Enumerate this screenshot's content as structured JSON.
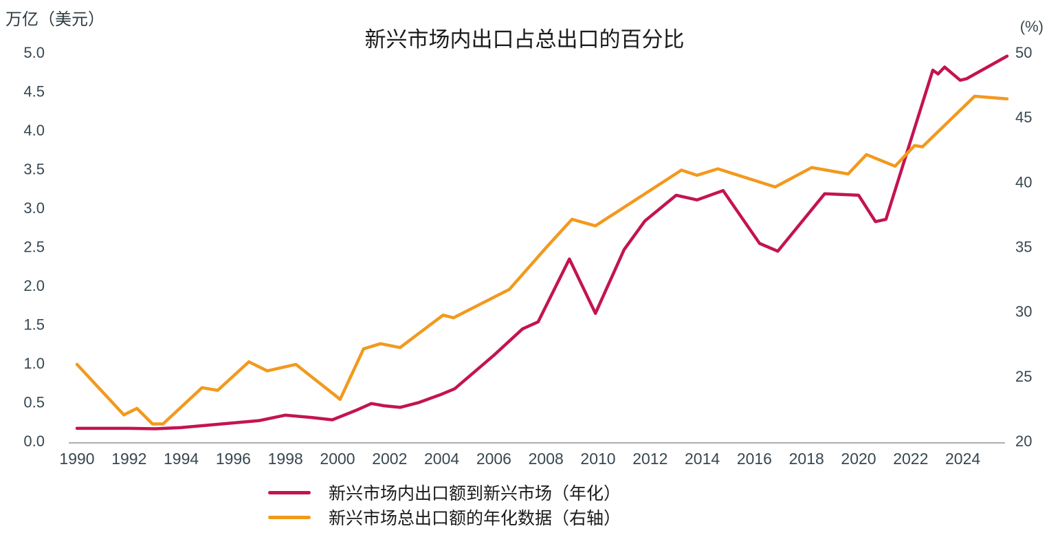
{
  "header": {
    "left_axis_title": "万亿（美元）",
    "chart_title": "新兴市场内出口占总出口的百分比",
    "right_axis_title": "(%)"
  },
  "legend": {
    "items": [
      {
        "label": "新兴市场内出口额到新兴市场（年化）",
        "color": "#c31450"
      },
      {
        "label": "新兴市场总出口额的年化数据（右轴）",
        "color": "#f2991e"
      }
    ]
  },
  "colors": {
    "red_line": "#c31450",
    "orange_line": "#f2991e",
    "tick_label": "#37474f",
    "axis_line": "#a9afb4",
    "title_text": "#1b1b1b"
  },
  "chart_data": {
    "type": "line",
    "title": "新兴市场内出口占总出口的百分比",
    "left_axis": {
      "title": "万亿（美元）",
      "unit": "trillion USD",
      "ticks": [
        "5.0",
        "4.5",
        "4.0",
        "3.5",
        "3.0",
        "2.5",
        "2.0",
        "1.5",
        "1.0",
        "0.5",
        "0.0"
      ],
      "tick_values": [
        5.0,
        4.5,
        4.0,
        3.5,
        3.0,
        2.5,
        2.0,
        1.5,
        1.0,
        0.5,
        0.0
      ],
      "range": [
        0,
        5
      ]
    },
    "right_axis": {
      "title": "(%)",
      "unit": "percent",
      "ticks": [
        "50",
        "45",
        "40",
        "35",
        "30",
        "25",
        "20"
      ],
      "tick_values": [
        50,
        45,
        40,
        35,
        30,
        25,
        20
      ],
      "range": [
        20,
        50
      ]
    },
    "x_axis": {
      "ticks": [
        "1990",
        "1992",
        "1994",
        "1996",
        "1998",
        "2000",
        "2002",
        "2004",
        "2006",
        "2008",
        "2010",
        "2012",
        "2014",
        "2016",
        "2018",
        "2020",
        "2022",
        "2024"
      ],
      "tick_values": [
        1990,
        1992,
        1994,
        1996,
        1998,
        2000,
        2002,
        2004,
        2006,
        2008,
        2010,
        2012,
        2014,
        2016,
        2018,
        2020,
        2022,
        2024
      ],
      "range": [
        1990,
        2025.7
      ]
    },
    "grid": false,
    "legend_position": "bottom",
    "series": [
      {
        "name": "新兴市场内出口额到新兴市场（年化）",
        "axis": "left",
        "color": "#c31450",
        "points": [
          [
            1990,
            0.16
          ],
          [
            1991,
            0.16
          ],
          [
            1992,
            0.16
          ],
          [
            1993,
            0.155
          ],
          [
            1994,
            0.17
          ],
          [
            1995,
            0.2
          ],
          [
            1996,
            0.23
          ],
          [
            1997,
            0.26
          ],
          [
            1998,
            0.33
          ],
          [
            1999,
            0.3
          ],
          [
            1999.8,
            0.27
          ],
          [
            2000.7,
            0.39
          ],
          [
            2001.3,
            0.48
          ],
          [
            2001.8,
            0.45
          ],
          [
            2002.4,
            0.43
          ],
          [
            2003.1,
            0.49
          ],
          [
            2004,
            0.6
          ],
          [
            2004.5,
            0.67
          ],
          [
            2006,
            1.1
          ],
          [
            2007.1,
            1.44
          ],
          [
            2007.7,
            1.53
          ],
          [
            2008.9,
            2.34
          ],
          [
            2009.9,
            1.64
          ],
          [
            2011,
            2.46
          ],
          [
            2011.8,
            2.83
          ],
          [
            2013,
            3.16
          ],
          [
            2013.8,
            3.1
          ],
          [
            2014.8,
            3.22
          ],
          [
            2016.2,
            2.54
          ],
          [
            2016.9,
            2.44
          ],
          [
            2018.7,
            3.18
          ],
          [
            2020,
            3.16
          ],
          [
            2020.65,
            2.82
          ],
          [
            2021.05,
            2.85
          ],
          [
            2022.85,
            4.77
          ],
          [
            2023.05,
            4.72
          ],
          [
            2023.3,
            4.81
          ],
          [
            2023.9,
            4.64
          ],
          [
            2024.15,
            4.66
          ],
          [
            2025.7,
            4.95
          ]
        ]
      },
      {
        "name": "新兴市场总出口额的年化数据（右轴）",
        "axis": "right",
        "color": "#f2991e",
        "points": [
          [
            1990,
            25.9
          ],
          [
            1991.8,
            22.0
          ],
          [
            1992.3,
            22.5
          ],
          [
            1992.9,
            21.3
          ],
          [
            1993.3,
            21.3
          ],
          [
            1994.8,
            24.1
          ],
          [
            1995.4,
            23.9
          ],
          [
            1996.6,
            26.1
          ],
          [
            1997.3,
            25.4
          ],
          [
            1998.4,
            25.9
          ],
          [
            2000.1,
            23.2
          ],
          [
            2001,
            27.1
          ],
          [
            2001.65,
            27.5
          ],
          [
            2002.4,
            27.2
          ],
          [
            2004.05,
            29.7
          ],
          [
            2004.45,
            29.5
          ],
          [
            2006.6,
            31.7
          ],
          [
            2008,
            34.9
          ],
          [
            2009,
            37.1
          ],
          [
            2009.9,
            36.6
          ],
          [
            2013.2,
            40.9
          ],
          [
            2013.8,
            40.5
          ],
          [
            2014.6,
            41.0
          ],
          [
            2016.8,
            39.6
          ],
          [
            2018.2,
            41.1
          ],
          [
            2019.6,
            40.6
          ],
          [
            2020.3,
            42.1
          ],
          [
            2021.4,
            41.2
          ],
          [
            2022.15,
            42.8
          ],
          [
            2022.45,
            42.7
          ],
          [
            2024.45,
            46.6
          ],
          [
            2025.7,
            46.4
          ]
        ]
      }
    ]
  }
}
